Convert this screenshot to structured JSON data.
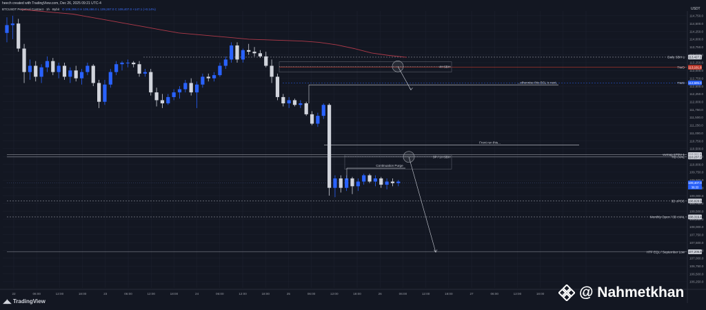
{
  "header": {
    "snapshot": "heech created with TradingView.com, Dec 26, 2025 09:21 UTC-4",
    "symbol": "BTCUSDT Perpetual Contract · 1h · Bybit",
    "ohlc": "O 109,286.0  H 109,486.0  L 109,267.0  C 109,407.0  +147.1 (+0.14%)"
  },
  "branding": {
    "logo_text": "TradingView",
    "watermark": "@ Nahmetkhan"
  },
  "colors": {
    "background": "#131722",
    "bull": "#2962ff",
    "bear": "#d1d4dc",
    "vwap": "#b23a4a",
    "grid": "#1e2230",
    "level": "#9598a1",
    "accent": "#2962ff"
  },
  "chart_data": {
    "type": "candlestick",
    "currency_label": "USDT",
    "ylim": [
      106050,
      114900
    ],
    "x_ticks": [
      "22",
      "06:00",
      "12:00",
      "18:00",
      "23",
      "06:00",
      "12:00",
      "18:00",
      "24",
      "06:00",
      "12:00",
      "18:00",
      "25",
      "06:00",
      "12:00",
      "18:00",
      "26",
      "06:00",
      "12:00",
      "18:00",
      "27",
      "06:00",
      "12:00",
      "18:00",
      "28",
      "06:00"
    ],
    "y_ticks": [
      114750,
      114500,
      114250,
      114000,
      113750,
      113500,
      113250,
      113000,
      112750,
      112500,
      112250,
      112000,
      111750,
      111500,
      111250,
      111000,
      110750,
      110500,
      110250,
      110000,
      109750,
      109500,
      109250,
      109000,
      108750,
      108500,
      108250,
      108000,
      107750,
      107500,
      107250,
      107000,
      106750,
      106500,
      106250
    ],
    "y_tick_labels": [
      "114,750.0",
      "114,500.0",
      "114,250.0",
      "114,000.0",
      "113,750.0",
      "113,500.0",
      "113,250.0",
      "113,000.0",
      "112,750.0",
      "112,500.0",
      "112,250.0",
      "112,000.0",
      "111,750.0",
      "111,500.0",
      "111,250.0",
      "111,000.0",
      "110,750.0",
      "110,500.0",
      "110,250.0",
      "110,000.0",
      "109,750.0",
      "109,500.0",
      "109,250.0",
      "109,000.0",
      "108,750.0",
      "108,500.0",
      "108,250.0",
      "108,000.0",
      "107,750.0",
      "107,500.0",
      "107,250.0",
      "107,000.0",
      "106,750.0",
      "106,500.0",
      "106,250.0"
    ],
    "candles": [
      {
        "t": 0,
        "o": 114200,
        "h": 114700,
        "l": 113900,
        "c": 114450
      },
      {
        "t": 1,
        "o": 114450,
        "h": 114750,
        "l": 114000,
        "c": 114500
      },
      {
        "t": 2,
        "o": 114500,
        "h": 114650,
        "l": 113600,
        "c": 113700
      },
      {
        "t": 3,
        "o": 113700,
        "h": 113850,
        "l": 112600,
        "c": 112950
      },
      {
        "t": 4,
        "o": 112950,
        "h": 113350,
        "l": 112700,
        "c": 113150
      },
      {
        "t": 5,
        "o": 113150,
        "h": 113300,
        "l": 112650,
        "c": 112800
      },
      {
        "t": 6,
        "o": 112800,
        "h": 113200,
        "l": 112600,
        "c": 113100
      },
      {
        "t": 7,
        "o": 113100,
        "h": 113450,
        "l": 112950,
        "c": 113300
      },
      {
        "t": 8,
        "o": 113300,
        "h": 113400,
        "l": 112850,
        "c": 112950
      },
      {
        "t": 9,
        "o": 112950,
        "h": 113250,
        "l": 112750,
        "c": 113150
      },
      {
        "t": 10,
        "o": 113150,
        "h": 113250,
        "l": 112700,
        "c": 112800
      },
      {
        "t": 11,
        "o": 112800,
        "h": 113100,
        "l": 112600,
        "c": 113000
      },
      {
        "t": 12,
        "o": 113000,
        "h": 113150,
        "l": 112650,
        "c": 112750
      },
      {
        "t": 13,
        "o": 112750,
        "h": 113050,
        "l": 112550,
        "c": 112950
      },
      {
        "t": 14,
        "o": 112950,
        "h": 113250,
        "l": 112850,
        "c": 113150
      },
      {
        "t": 15,
        "o": 113150,
        "h": 113200,
        "l": 112500,
        "c": 112600
      },
      {
        "t": 16,
        "o": 112600,
        "h": 112700,
        "l": 111800,
        "c": 112000
      },
      {
        "t": 17,
        "o": 112000,
        "h": 112700,
        "l": 111900,
        "c": 112550
      },
      {
        "t": 18,
        "o": 112550,
        "h": 113050,
        "l": 112450,
        "c": 112950
      },
      {
        "t": 19,
        "o": 112950,
        "h": 113300,
        "l": 112850,
        "c": 113200
      },
      {
        "t": 20,
        "o": 113200,
        "h": 113300,
        "l": 113000,
        "c": 113250
      },
      {
        "t": 21,
        "o": 113250,
        "h": 113350,
        "l": 113100,
        "c": 113250
      },
      {
        "t": 22,
        "o": 113250,
        "h": 113300,
        "l": 113100,
        "c": 113200
      },
      {
        "t": 23,
        "o": 113200,
        "h": 113300,
        "l": 112800,
        "c": 112900
      },
      {
        "t": 24,
        "o": 112900,
        "h": 113050,
        "l": 112800,
        "c": 112950
      },
      {
        "t": 25,
        "o": 112950,
        "h": 113050,
        "l": 112200,
        "c": 112300
      },
      {
        "t": 26,
        "o": 112300,
        "h": 112450,
        "l": 111850,
        "c": 112050
      },
      {
        "t": 27,
        "o": 112050,
        "h": 112250,
        "l": 111800,
        "c": 111950
      },
      {
        "t": 28,
        "o": 111950,
        "h": 112250,
        "l": 111900,
        "c": 112150
      },
      {
        "t": 29,
        "o": 112150,
        "h": 112400,
        "l": 112050,
        "c": 112300
      },
      {
        "t": 30,
        "o": 112300,
        "h": 112500,
        "l": 112100,
        "c": 112400
      },
      {
        "t": 31,
        "o": 112400,
        "h": 112700,
        "l": 112300,
        "c": 112600
      },
      {
        "t": 32,
        "o": 112600,
        "h": 112750,
        "l": 112200,
        "c": 112300
      },
      {
        "t": 33,
        "o": 112300,
        "h": 112650,
        "l": 111800,
        "c": 112550
      },
      {
        "t": 34,
        "o": 112550,
        "h": 112900,
        "l": 112450,
        "c": 112800
      },
      {
        "t": 35,
        "o": 112800,
        "h": 112900,
        "l": 112650,
        "c": 112750
      },
      {
        "t": 36,
        "o": 112750,
        "h": 112950,
        "l": 112650,
        "c": 112850
      },
      {
        "t": 37,
        "o": 112850,
        "h": 113250,
        "l": 112800,
        "c": 113150
      },
      {
        "t": 38,
        "o": 113150,
        "h": 113450,
        "l": 113050,
        "c": 113350
      },
      {
        "t": 39,
        "o": 113350,
        "h": 113900,
        "l": 113250,
        "c": 113800
      },
      {
        "t": 40,
        "o": 113800,
        "h": 113900,
        "l": 113250,
        "c": 113350
      },
      {
        "t": 41,
        "o": 113350,
        "h": 113700,
        "l": 113250,
        "c": 113650
      },
      {
        "t": 42,
        "o": 113650,
        "h": 113850,
        "l": 113500,
        "c": 113600
      },
      {
        "t": 43,
        "o": 113600,
        "h": 113750,
        "l": 113450,
        "c": 113550
      },
      {
        "t": 44,
        "o": 113550,
        "h": 113650,
        "l": 113400,
        "c": 113450
      },
      {
        "t": 45,
        "o": 113450,
        "h": 113600,
        "l": 113100,
        "c": 113150
      },
      {
        "t": 46,
        "o": 113150,
        "h": 113350,
        "l": 112600,
        "c": 112800
      },
      {
        "t": 47,
        "o": 112800,
        "h": 112900,
        "l": 112050,
        "c": 112150
      },
      {
        "t": 48,
        "o": 112150,
        "h": 112250,
        "l": 111850,
        "c": 111950
      },
      {
        "t": 49,
        "o": 111950,
        "h": 112150,
        "l": 111800,
        "c": 112050
      },
      {
        "t": 50,
        "o": 112050,
        "h": 112100,
        "l": 111850,
        "c": 111900
      },
      {
        "t": 51,
        "o": 111900,
        "h": 112050,
        "l": 111800,
        "c": 111950
      },
      {
        "t": 52,
        "o": 111950,
        "h": 112000,
        "l": 111550,
        "c": 111600
      },
      {
        "t": 53,
        "o": 111600,
        "h": 111700,
        "l": 111250,
        "c": 111300
      },
      {
        "t": 54,
        "o": 111300,
        "h": 111650,
        "l": 111200,
        "c": 111550
      },
      {
        "t": 55,
        "o": 111550,
        "h": 111950,
        "l": 111450,
        "c": 111900
      },
      {
        "t": 56,
        "o": 111900,
        "h": 111950,
        "l": 109000,
        "c": 109250
      },
      {
        "t": 57,
        "o": 109250,
        "h": 109650,
        "l": 108950,
        "c": 109550
      },
      {
        "t": 58,
        "o": 109550,
        "h": 109650,
        "l": 109100,
        "c": 109250
      },
      {
        "t": 59,
        "o": 109250,
        "h": 109650,
        "l": 109150,
        "c": 109550
      },
      {
        "t": 60,
        "o": 109550,
        "h": 109600,
        "l": 109050,
        "c": 109300
      },
      {
        "t": 61,
        "o": 109300,
        "h": 109550,
        "l": 109150,
        "c": 109450
      },
      {
        "t": 62,
        "o": 109450,
        "h": 109700,
        "l": 109350,
        "c": 109650
      },
      {
        "t": 63,
        "o": 109650,
        "h": 109700,
        "l": 109400,
        "c": 109450
      },
      {
        "t": 64,
        "o": 109450,
        "h": 109650,
        "l": 109300,
        "c": 109550
      },
      {
        "t": 65,
        "o": 109550,
        "h": 109600,
        "l": 109250,
        "c": 109350
      },
      {
        "t": 66,
        "o": 109350,
        "h": 109550,
        "l": 109200,
        "c": 109450
      },
      {
        "t": 67,
        "o": 109450,
        "h": 109550,
        "l": 109300,
        "c": 109400
      },
      {
        "t": 68,
        "o": 109400,
        "h": 109500,
        "l": 109300,
        "c": 109450
      }
    ],
    "vwap_series": [
      114950,
      114900,
      114850,
      114800,
      114700,
      114600,
      114500,
      114400,
      114300,
      114200,
      114150,
      114100,
      114050,
      114000,
      113980,
      113960,
      113940,
      113900,
      113820,
      113700,
      113560,
      113480,
      113420
    ],
    "levels": [
      {
        "label": "Daily SBH L",
        "price_text": "113,427.1",
        "price": 113427
      },
      {
        "label": "TWO",
        "price_text": "113,101.8",
        "price": 113102,
        "accent": "#c0392b"
      },
      {
        "label": "TWO",
        "price_text": "112,605.0",
        "price": 112605,
        "accent": "#2962ff"
      },
      {
        "label": "vwmap STDV 1",
        "price_text": "110,311.8",
        "price": 110312
      },
      {
        "label": "RD cVAL",
        "price_text": "110,237.2",
        "price": 110237
      },
      {
        "label": "",
        "price_text": "109,407.0",
        "price": 109407,
        "accent": "#2962ff",
        "sub_text": "36:33"
      },
      {
        "label": "3D cPOC",
        "price_text": "108,828.9",
        "price": 108829
      },
      {
        "label": "Monthly Open / 3D cVAL",
        "price_text": "108,319.4",
        "price": 108319
      },
      {
        "label": "HTF EQL / September Low",
        "price_text": "107,205.8",
        "price": 107206
      }
    ],
    "annotations": {
      "box_4h": "4H SBH",
      "otherwise": "...otherwise this BSL is next.",
      "front_run": "Front run this...",
      "box_1h": "SP / 1H SBH",
      "continuation": "Continuation Purge"
    }
  }
}
